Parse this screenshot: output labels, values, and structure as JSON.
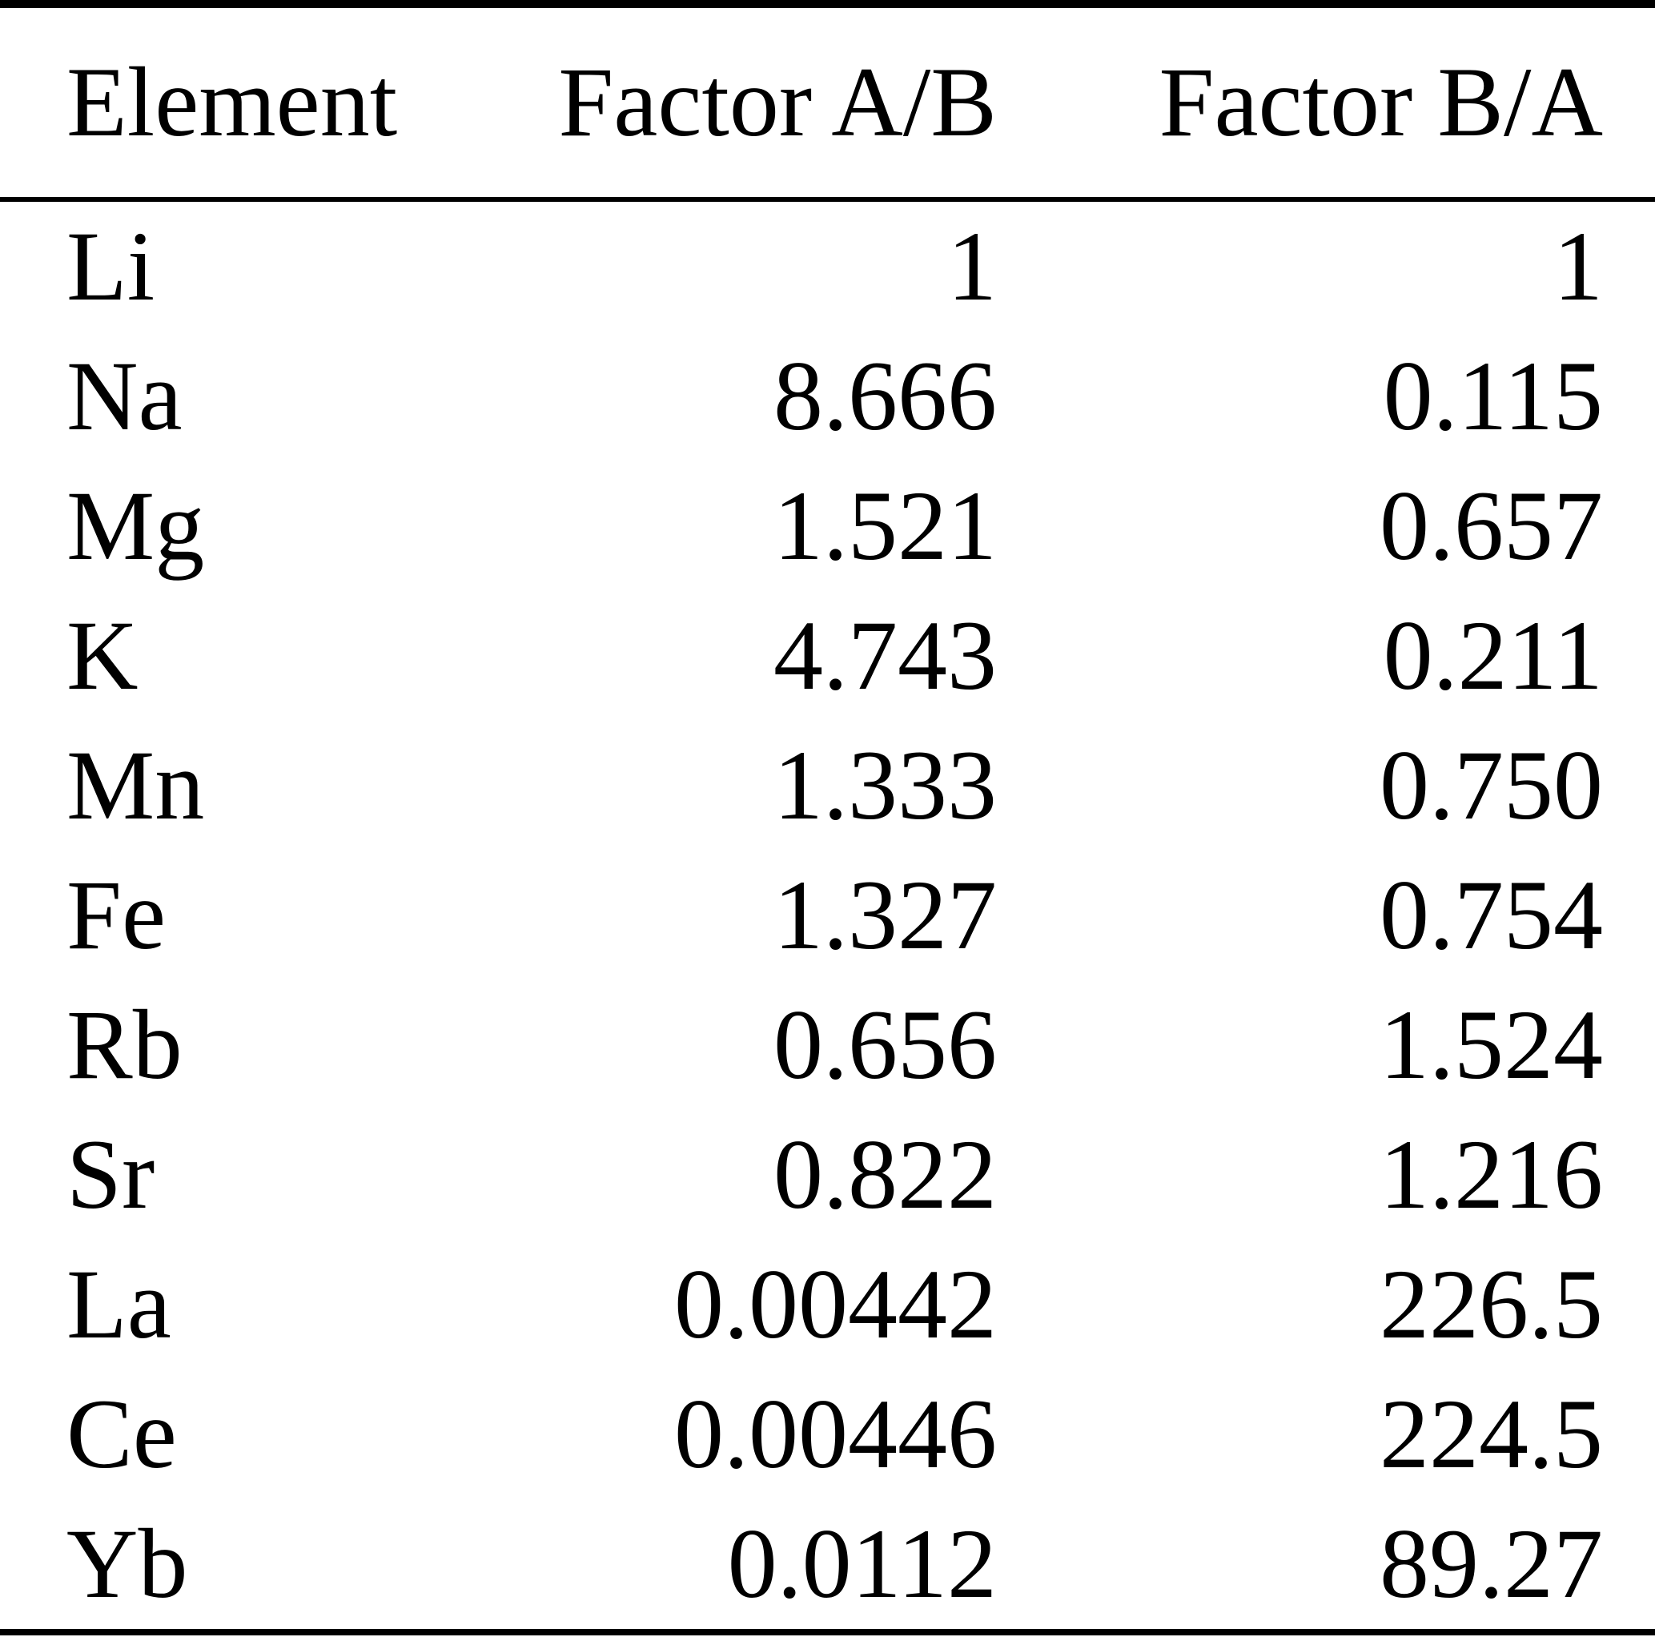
{
  "page": {
    "background_color": "#ffffff",
    "text_color": "#000000",
    "rule_color": "#000000"
  },
  "chart_data": {
    "type": "table",
    "title": "",
    "columns": [
      "Element",
      "Factor A/B",
      "Factor B/A"
    ],
    "column_alignments": [
      "left",
      "right",
      "right"
    ],
    "rows": [
      [
        "Li",
        "1",
        "1"
      ],
      [
        "Na",
        "8.666",
        "0.115"
      ],
      [
        "Mg",
        "1.521",
        "0.657"
      ],
      [
        "K",
        "4.743",
        "0.211"
      ],
      [
        "Mn",
        "1.333",
        "0.750"
      ],
      [
        "Fe",
        "1.327",
        "0.754"
      ],
      [
        "Rb",
        "0.656",
        "1.524"
      ],
      [
        "Sr",
        "0.822",
        "1.216"
      ],
      [
        "La",
        "0.00442",
        "226.5"
      ],
      [
        "Ce",
        "0.00446",
        "224.5"
      ],
      [
        "Yb",
        "0.0112",
        "89.27"
      ]
    ],
    "layout": {
      "top_rule": true,
      "header_rule": true,
      "bottom_rule": true,
      "vertical_lines": false
    }
  }
}
